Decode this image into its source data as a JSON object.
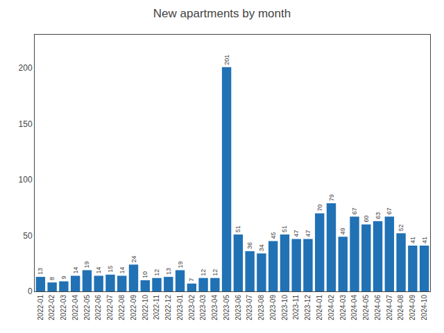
{
  "chart_data": {
    "type": "bar",
    "title": "New apartments by month",
    "categories": [
      "2022-01",
      "2022-02",
      "2022-03",
      "2022-04",
      "2022-05",
      "2022-06",
      "2022-07",
      "2022-08",
      "2022-09",
      "2022-10",
      "2022-11",
      "2022-12",
      "2023-01",
      "2023-02",
      "2023-03",
      "2023-04",
      "2023-05",
      "2023-06",
      "2023-07",
      "2023-08",
      "2023-09",
      "2023-10",
      "2023-11",
      "2023-12",
      "2024-01",
      "2024-02",
      "2024-03",
      "2024-04",
      "2024-05",
      "2024-06",
      "2024-07",
      "2024-08",
      "2024-09",
      "2024-10"
    ],
    "values": [
      13,
      8,
      9,
      14,
      19,
      14,
      15,
      14,
      24,
      10,
      12,
      13,
      19,
      7,
      12,
      12,
      201,
      51,
      36,
      34,
      45,
      51,
      47,
      47,
      70,
      79,
      49,
      67,
      60,
      63,
      67,
      52,
      41,
      41
    ],
    "color": "#2171b5",
    "ylim": [
      0,
      230
    ],
    "yticks": [
      0,
      50,
      100,
      150,
      200
    ],
    "grid": false,
    "data_labels": true
  }
}
